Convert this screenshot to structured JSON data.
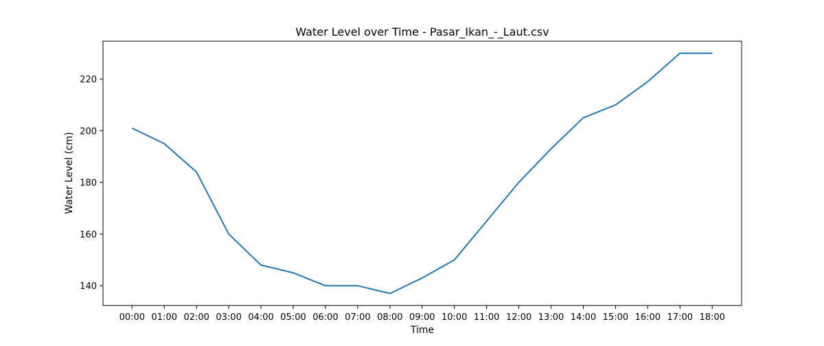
{
  "chart_data": {
    "type": "line",
    "title": "Water Level over Time - Pasar_Ikan_-_Laut.csv",
    "xlabel": "Time",
    "ylabel": "Water Level (cm)",
    "categories": [
      "00:00",
      "01:00",
      "02:00",
      "03:00",
      "04:00",
      "05:00",
      "06:00",
      "07:00",
      "08:00",
      "09:00",
      "10:00",
      "11:00",
      "12:00",
      "13:00",
      "14:00",
      "15:00",
      "16:00",
      "17:00",
      "18:00"
    ],
    "series": [
      {
        "values": [
          201,
          195,
          184,
          160,
          148,
          145,
          140,
          140,
          137,
          143,
          150,
          165,
          180,
          193,
          205,
          210,
          219,
          230,
          230
        ],
        "color": "#1f77b4"
      }
    ],
    "ylim": [
      132.35,
      234.65
    ],
    "yticks": [
      140,
      160,
      180,
      200,
      220
    ],
    "grid": false,
    "legend": "none"
  }
}
